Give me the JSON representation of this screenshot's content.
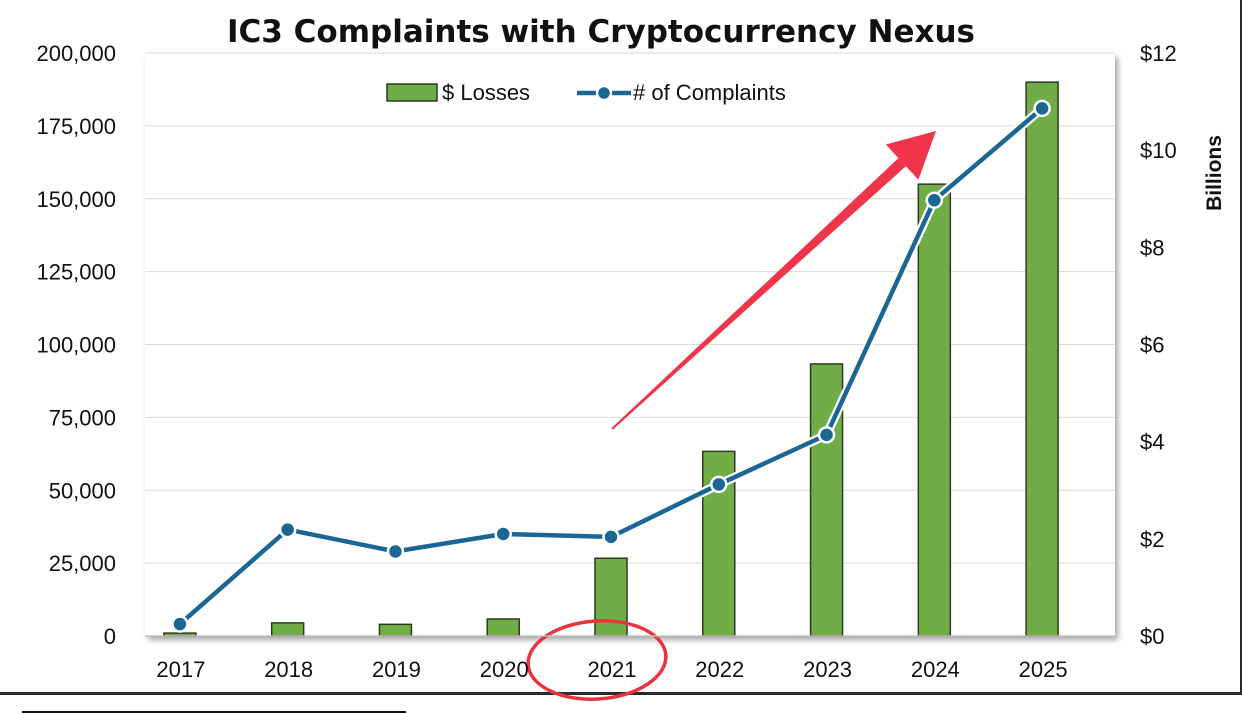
{
  "chart_data": {
    "type": "bar+line",
    "title": "IC3 Complaints with Cryptocurrency Nexus",
    "categories": [
      "2017",
      "2018",
      "2019",
      "2020",
      "2021",
      "2022",
      "2023",
      "2024",
      "2025"
    ],
    "series": [
      {
        "name": "$ Losses",
        "type": "bar",
        "axis": "right",
        "unit": "billions USD",
        "values": [
          0.06,
          0.27,
          0.24,
          0.35,
          1.6,
          3.8,
          5.6,
          9.3,
          11.4
        ],
        "color": "#71AD47"
      },
      {
        "name": "# of Complaints",
        "type": "line",
        "axis": "left",
        "values": [
          4100,
          36500,
          29000,
          35000,
          34000,
          52000,
          69000,
          149500,
          181000
        ],
        "color": "#1B6694"
      }
    ],
    "y_left": {
      "range": [
        0,
        200000
      ],
      "ticks": [
        0,
        25000,
        50000,
        75000,
        100000,
        125000,
        150000,
        175000,
        200000
      ],
      "tick_labels": [
        "0",
        "25,000",
        "50,000",
        "75,000",
        "100,000",
        "125,000",
        "150,000",
        "175,000",
        "200,000"
      ]
    },
    "y_right": {
      "range": [
        0,
        12
      ],
      "label": "Billions",
      "ticks": [
        0,
        2,
        4,
        6,
        8,
        10,
        12
      ],
      "tick_labels": [
        "$0",
        "$2",
        "$4",
        "$6",
        "$8",
        "$10",
        "$12"
      ]
    },
    "legend_position": "top-center",
    "grid": true,
    "annotations": [
      {
        "type": "arrow",
        "color": "#F0344A",
        "meaning": "upward trend from 2021 toward 2024"
      },
      {
        "type": "ellipse",
        "color": "#E8343F",
        "target": "2021"
      }
    ]
  }
}
